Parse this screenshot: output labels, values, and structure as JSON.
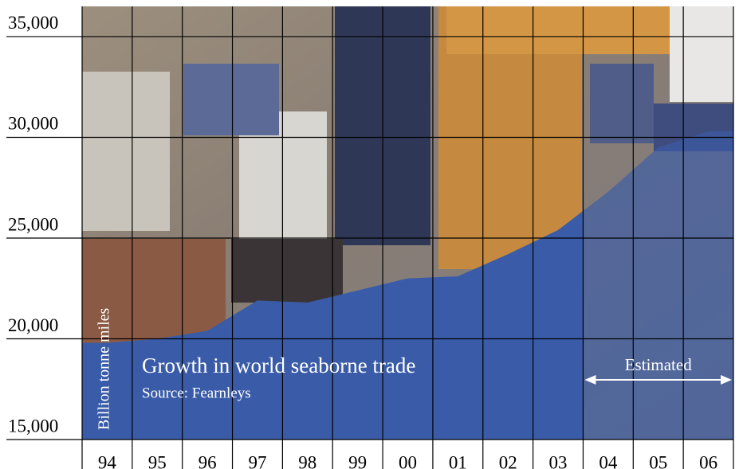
{
  "chart_data": {
    "type": "area",
    "title": "Growth in world seaborne trade",
    "subtitle": "Source: Fearnleys",
    "y_label": "Billion tonne miles",
    "categories": [
      "94",
      "95",
      "96",
      "97",
      "98",
      "99",
      "00",
      "01",
      "02",
      "03",
      "04",
      "05",
      "06"
    ],
    "values": [
      19800,
      20000,
      20400,
      21900,
      21800,
      22400,
      23000,
      23100,
      24200,
      25400,
      27300,
      29500,
      30300
    ],
    "color": "#3a5ca8",
    "ylim": [
      15000,
      36500
    ],
    "yticks": [
      {
        "value": 15000,
        "label": "15,000"
      },
      {
        "value": 20000,
        "label": "20,000"
      },
      {
        "value": 25000,
        "label": "25,000"
      },
      {
        "value": 30000,
        "label": "30,000"
      },
      {
        "value": 35000,
        "label": "35,000"
      }
    ],
    "grid": true,
    "annotation": {
      "text": "Estimated",
      "from": "04",
      "to": "06"
    }
  }
}
